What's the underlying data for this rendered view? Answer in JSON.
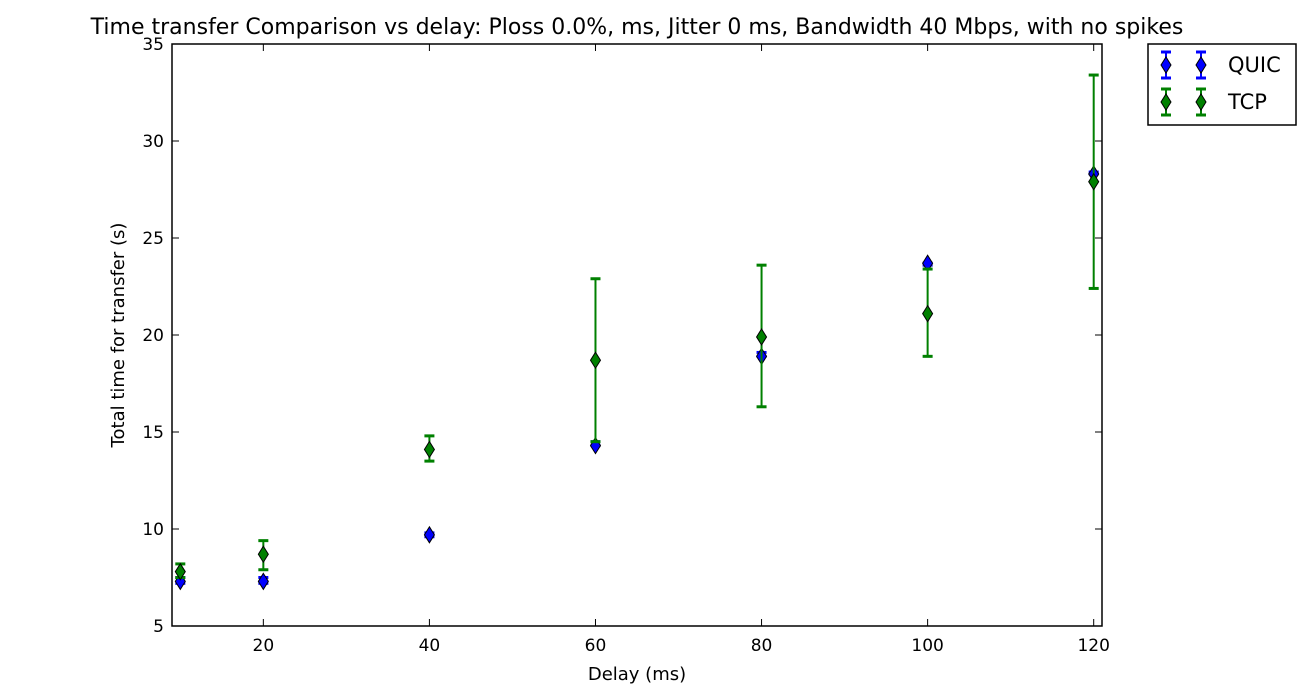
{
  "chart_data": {
    "type": "scatter",
    "title": "Time transfer Comparison vs delay: Ploss 0.0%, ms, Jitter 0 ms, Bandwidth 40 Mbps, with no spikes",
    "xlabel": "Delay (ms)",
    "ylabel": "Total time for transfer (s)",
    "xlim": [
      9,
      121
    ],
    "ylim": [
      5,
      35
    ],
    "xticks": [
      20,
      40,
      60,
      80,
      100,
      120
    ],
    "yticks": [
      5,
      10,
      15,
      20,
      25,
      30,
      35
    ],
    "legend_position": "outside-top-right",
    "grid": false,
    "series": [
      {
        "name": "QUIC",
        "color": "#0000ff",
        "marker": "thin-diamond",
        "points": [
          {
            "x": 10,
            "y": 7.3,
            "err_low": 7.2,
            "err_high": 7.5
          },
          {
            "x": 20,
            "y": 7.3,
            "err_low": 7.2,
            "err_high": 7.5
          },
          {
            "x": 40,
            "y": 9.7,
            "err_low": 9.6,
            "err_high": 9.8
          },
          {
            "x": 60,
            "y": 14.3,
            "err_low": 14.3,
            "err_high": 14.5
          },
          {
            "x": 80,
            "y": 18.9,
            "err_low": 18.9,
            "err_high": 19.1
          },
          {
            "x": 100,
            "y": 23.7,
            "err_low": 23.6,
            "err_high": 23.7
          },
          {
            "x": 120,
            "y": 28.3,
            "err_low": 28.3,
            "err_high": 28.4
          }
        ]
      },
      {
        "name": "TCP",
        "color": "#008000",
        "marker": "thin-diamond",
        "points": [
          {
            "x": 10,
            "y": 7.8,
            "err_low": 7.5,
            "err_high": 8.2
          },
          {
            "x": 20,
            "y": 8.7,
            "err_low": 7.9,
            "err_high": 9.4
          },
          {
            "x": 40,
            "y": 14.1,
            "err_low": 13.5,
            "err_high": 14.8
          },
          {
            "x": 60,
            "y": 18.7,
            "err_low": 14.5,
            "err_high": 22.9
          },
          {
            "x": 80,
            "y": 19.9,
            "err_low": 16.3,
            "err_high": 23.6
          },
          {
            "x": 100,
            "y": 21.1,
            "err_low": 18.9,
            "err_high": 23.4
          },
          {
            "x": 120,
            "y": 27.9,
            "err_low": 22.4,
            "err_high": 33.4
          }
        ]
      }
    ]
  }
}
